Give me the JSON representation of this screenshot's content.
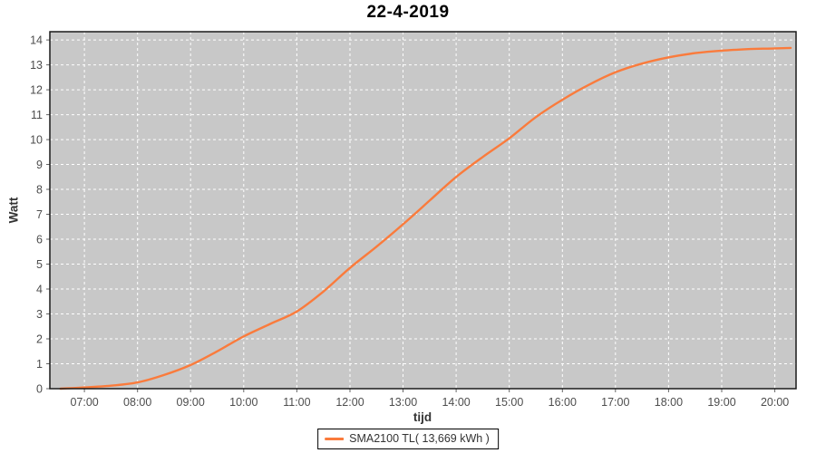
{
  "page": {
    "title": "22-4-2019"
  },
  "chart_data": {
    "type": "line",
    "title": "22-4-2019",
    "xlabel": "tijd",
    "ylabel": "Watt",
    "x_tick_labels": [
      "07:00",
      "08:00",
      "09:00",
      "10:00",
      "11:00",
      "12:00",
      "13:00",
      "14:00",
      "15:00",
      "16:00",
      "17:00",
      "18:00",
      "19:00",
      "20:00"
    ],
    "y_tick_labels": [
      "0",
      "1",
      "2",
      "3",
      "4",
      "5",
      "6",
      "7",
      "8",
      "9",
      "10",
      "11",
      "12",
      "13",
      "14"
    ],
    "xlim_hours": [
      6.35,
      20.4
    ],
    "ylim": [
      0,
      14.33
    ],
    "grid": {
      "on": true,
      "color": "#ffffff",
      "style": "dashed"
    },
    "plot_background": "#c8c8c8",
    "legend_position": "bottom-center",
    "series": [
      {
        "name": "SMA2100 TL( 13,669 kWh )",
        "color": "#fa7b3c",
        "points": [
          [
            "06:33",
            0.0
          ],
          [
            "07:00",
            0.05
          ],
          [
            "07:30",
            0.12
          ],
          [
            "08:00",
            0.25
          ],
          [
            "08:30",
            0.55
          ],
          [
            "09:00",
            0.95
          ],
          [
            "09:30",
            1.5
          ],
          [
            "10:00",
            2.1
          ],
          [
            "10:30",
            2.6
          ],
          [
            "11:00",
            3.1
          ],
          [
            "11:30",
            3.9
          ],
          [
            "12:00",
            4.85
          ],
          [
            "12:30",
            5.7
          ],
          [
            "13:00",
            6.6
          ],
          [
            "13:30",
            7.55
          ],
          [
            "14:00",
            8.5
          ],
          [
            "14:30",
            9.3
          ],
          [
            "15:00",
            10.05
          ],
          [
            "15:30",
            10.9
          ],
          [
            "16:00",
            11.6
          ],
          [
            "16:30",
            12.2
          ],
          [
            "17:00",
            12.7
          ],
          [
            "17:30",
            13.05
          ],
          [
            "18:00",
            13.3
          ],
          [
            "18:30",
            13.47
          ],
          [
            "19:00",
            13.57
          ],
          [
            "19:30",
            13.63
          ],
          [
            "20:00",
            13.66
          ],
          [
            "20:18",
            13.68
          ]
        ]
      }
    ]
  }
}
